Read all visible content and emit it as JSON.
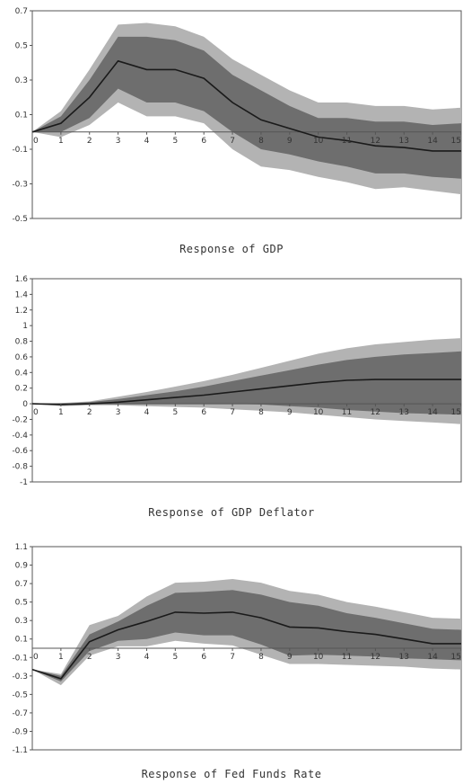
{
  "chart_data": [
    {
      "type": "area",
      "title": "Response of GDP",
      "x": [
        0,
        1,
        2,
        3,
        4,
        5,
        6,
        7,
        8,
        9,
        10,
        11,
        12,
        13,
        14,
        15
      ],
      "x_ticks": [
        "0",
        "1",
        "2",
        "3",
        "4",
        "5",
        "6",
        "7",
        "8",
        "9",
        "10",
        "11",
        "12",
        "13",
        "14",
        "15"
      ],
      "y_ticks": [
        "0.7",
        "0.5",
        "0.3",
        "0.1",
        "-0.1",
        "-0.3",
        "-0.5"
      ],
      "ylim": [
        -0.5,
        0.7
      ],
      "grid": false,
      "series": [
        {
          "role": "median",
          "values": [
            0,
            0.05,
            0.2,
            0.41,
            0.36,
            0.36,
            0.31,
            0.17,
            0.07,
            0.02,
            -0.03,
            -0.05,
            -0.08,
            -0.09,
            -0.11,
            -0.11
          ]
        },
        {
          "role": "inner_band_upper",
          "values": [
            0,
            0.09,
            0.3,
            0.55,
            0.55,
            0.53,
            0.47,
            0.33,
            0.24,
            0.15,
            0.08,
            0.08,
            0.06,
            0.06,
            0.04,
            0.05
          ]
        },
        {
          "role": "inner_band_lower",
          "values": [
            0,
            0.0,
            0.08,
            0.25,
            0.17,
            0.17,
            0.12,
            0.0,
            -0.1,
            -0.13,
            -0.17,
            -0.2,
            -0.24,
            -0.24,
            -0.26,
            -0.27
          ]
        },
        {
          "role": "outer_band_upper",
          "values": [
            0,
            0.12,
            0.36,
            0.62,
            0.63,
            0.61,
            0.55,
            0.42,
            0.33,
            0.24,
            0.17,
            0.17,
            0.15,
            0.15,
            0.13,
            0.14
          ]
        },
        {
          "role": "outer_band_lower",
          "values": [
            0,
            -0.03,
            0.04,
            0.17,
            0.09,
            0.09,
            0.05,
            -0.1,
            -0.2,
            -0.22,
            -0.26,
            -0.29,
            -0.33,
            -0.32,
            -0.34,
            -0.36
          ]
        }
      ]
    },
    {
      "type": "area",
      "title": "Response of GDP Deflator",
      "x": [
        0,
        1,
        2,
        3,
        4,
        5,
        6,
        7,
        8,
        9,
        10,
        11,
        12,
        13,
        14,
        15
      ],
      "x_ticks": [
        "0",
        "1",
        "2",
        "3",
        "4",
        "5",
        "6",
        "7",
        "8",
        "9",
        "10",
        "11",
        "12",
        "13",
        "14",
        "15"
      ],
      "y_ticks": [
        "1.6",
        "1.4",
        "1.2",
        "1",
        "0.8",
        "0.6",
        "0.4",
        "0.2",
        "0",
        "-0.2",
        "-0.4",
        "-0.6",
        "-0.8",
        "-1"
      ],
      "ylim": [
        -1,
        1.6
      ],
      "grid": false,
      "series": [
        {
          "role": "median",
          "values": [
            0,
            -0.01,
            0.0,
            0.02,
            0.05,
            0.08,
            0.11,
            0.15,
            0.19,
            0.23,
            0.27,
            0.3,
            0.31,
            0.31,
            0.31,
            0.31
          ]
        },
        {
          "role": "inner_band_upper",
          "values": [
            0,
            0.0,
            0.02,
            0.06,
            0.11,
            0.16,
            0.22,
            0.29,
            0.36,
            0.43,
            0.5,
            0.56,
            0.6,
            0.63,
            0.65,
            0.67
          ]
        },
        {
          "role": "inner_band_lower",
          "values": [
            0,
            -0.02,
            -0.01,
            0.0,
            0.0,
            0.0,
            0.0,
            0.0,
            -0.01,
            -0.03,
            -0.05,
            -0.08,
            -0.1,
            -0.12,
            -0.13,
            -0.14
          ]
        },
        {
          "role": "outer_band_upper",
          "values": [
            0,
            0.01,
            0.03,
            0.09,
            0.15,
            0.22,
            0.29,
            0.37,
            0.46,
            0.55,
            0.64,
            0.71,
            0.76,
            0.79,
            0.82,
            0.84
          ]
        },
        {
          "role": "outer_band_lower",
          "values": [
            0,
            -0.03,
            -0.02,
            -0.02,
            -0.03,
            -0.04,
            -0.05,
            -0.07,
            -0.09,
            -0.11,
            -0.14,
            -0.17,
            -0.2,
            -0.22,
            -0.24,
            -0.26
          ]
        }
      ]
    },
    {
      "type": "area",
      "title": "Response of Fed Funds Rate",
      "x": [
        0,
        1,
        2,
        3,
        4,
        5,
        6,
        7,
        8,
        9,
        10,
        11,
        12,
        13,
        14,
        15
      ],
      "x_ticks": [
        "0",
        "1",
        "2",
        "3",
        "4",
        "5",
        "6",
        "7",
        "8",
        "9",
        "10",
        "11",
        "12",
        "13",
        "14",
        "15"
      ],
      "y_ticks": [
        "1.1",
        "0.9",
        "0.7",
        "0.5",
        "0.3",
        "0.1",
        "-0.1",
        "-0.3",
        "-0.5",
        "-0.7",
        "-0.9",
        "-1.1"
      ],
      "ylim": [
        -1.1,
        1.1
      ],
      "grid": false,
      "series": [
        {
          "role": "median",
          "values": [
            -0.23,
            -0.33,
            0.07,
            0.2,
            0.29,
            0.39,
            0.38,
            0.39,
            0.33,
            0.23,
            0.22,
            0.18,
            0.15,
            0.1,
            0.05,
            0.05
          ]
        },
        {
          "role": "inner_band_upper",
          "values": [
            -0.23,
            -0.3,
            0.15,
            0.29,
            0.46,
            0.6,
            0.61,
            0.63,
            0.58,
            0.5,
            0.46,
            0.38,
            0.33,
            0.27,
            0.21,
            0.2
          ]
        },
        {
          "role": "inner_band_lower",
          "values": [
            -0.23,
            -0.36,
            -0.03,
            0.08,
            0.1,
            0.17,
            0.14,
            0.14,
            0.04,
            -0.08,
            -0.07,
            -0.08,
            -0.09,
            -0.11,
            -0.12,
            -0.13
          ]
        },
        {
          "role": "outer_band_upper",
          "values": [
            -0.23,
            -0.28,
            0.25,
            0.35,
            0.56,
            0.71,
            0.72,
            0.75,
            0.71,
            0.62,
            0.58,
            0.5,
            0.45,
            0.39,
            0.33,
            0.32
          ]
        },
        {
          "role": "outer_band_lower",
          "values": [
            -0.23,
            -0.4,
            -0.08,
            0.02,
            0.02,
            0.08,
            0.05,
            0.03,
            -0.07,
            -0.17,
            -0.17,
            -0.18,
            -0.19,
            -0.2,
            -0.22,
            -0.23
          ]
        }
      ]
    }
  ],
  "colors": {
    "outer_band": "#b3b3b3",
    "inner_band": "#6e6e6e",
    "median_line": "#1a1a1a",
    "zero_line": "#555555",
    "axis": "#555555"
  }
}
